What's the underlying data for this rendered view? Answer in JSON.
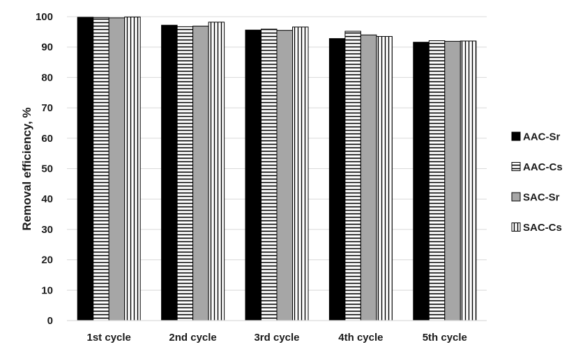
{
  "chart_data": {
    "type": "bar",
    "title": "",
    "xlabel": "",
    "ylabel": "Removal efficiency, %",
    "ylim": [
      0,
      100
    ],
    "yticks": [
      0,
      10,
      20,
      30,
      40,
      50,
      60,
      70,
      80,
      90,
      100
    ],
    "grid": true,
    "legend_position": "right",
    "categories": [
      "1st cycle",
      "2nd cycle",
      "3rd cycle",
      "4th cycle",
      "5th cycle"
    ],
    "series": [
      {
        "name": "AAC-Sr",
        "values": [
          99.8,
          97.2,
          95.6,
          92.8,
          91.6
        ],
        "pattern": "solid-black"
      },
      {
        "name": "AAC-Cs",
        "values": [
          99.7,
          96.7,
          95.9,
          95.2,
          92.1
        ],
        "pattern": "horizontal-lines"
      },
      {
        "name": "SAC-Sr",
        "values": [
          99.6,
          96.9,
          95.5,
          94.0,
          91.9
        ],
        "pattern": "solid-gray"
      },
      {
        "name": "SAC-Cs",
        "values": [
          99.9,
          98.2,
          96.6,
          93.5,
          92.0
        ],
        "pattern": "vertical-lines"
      }
    ],
    "colors": {
      "black": "#000000",
      "gray": "#a6a6a6",
      "grid": "#d9d9d9",
      "stroke": "#000000"
    }
  }
}
